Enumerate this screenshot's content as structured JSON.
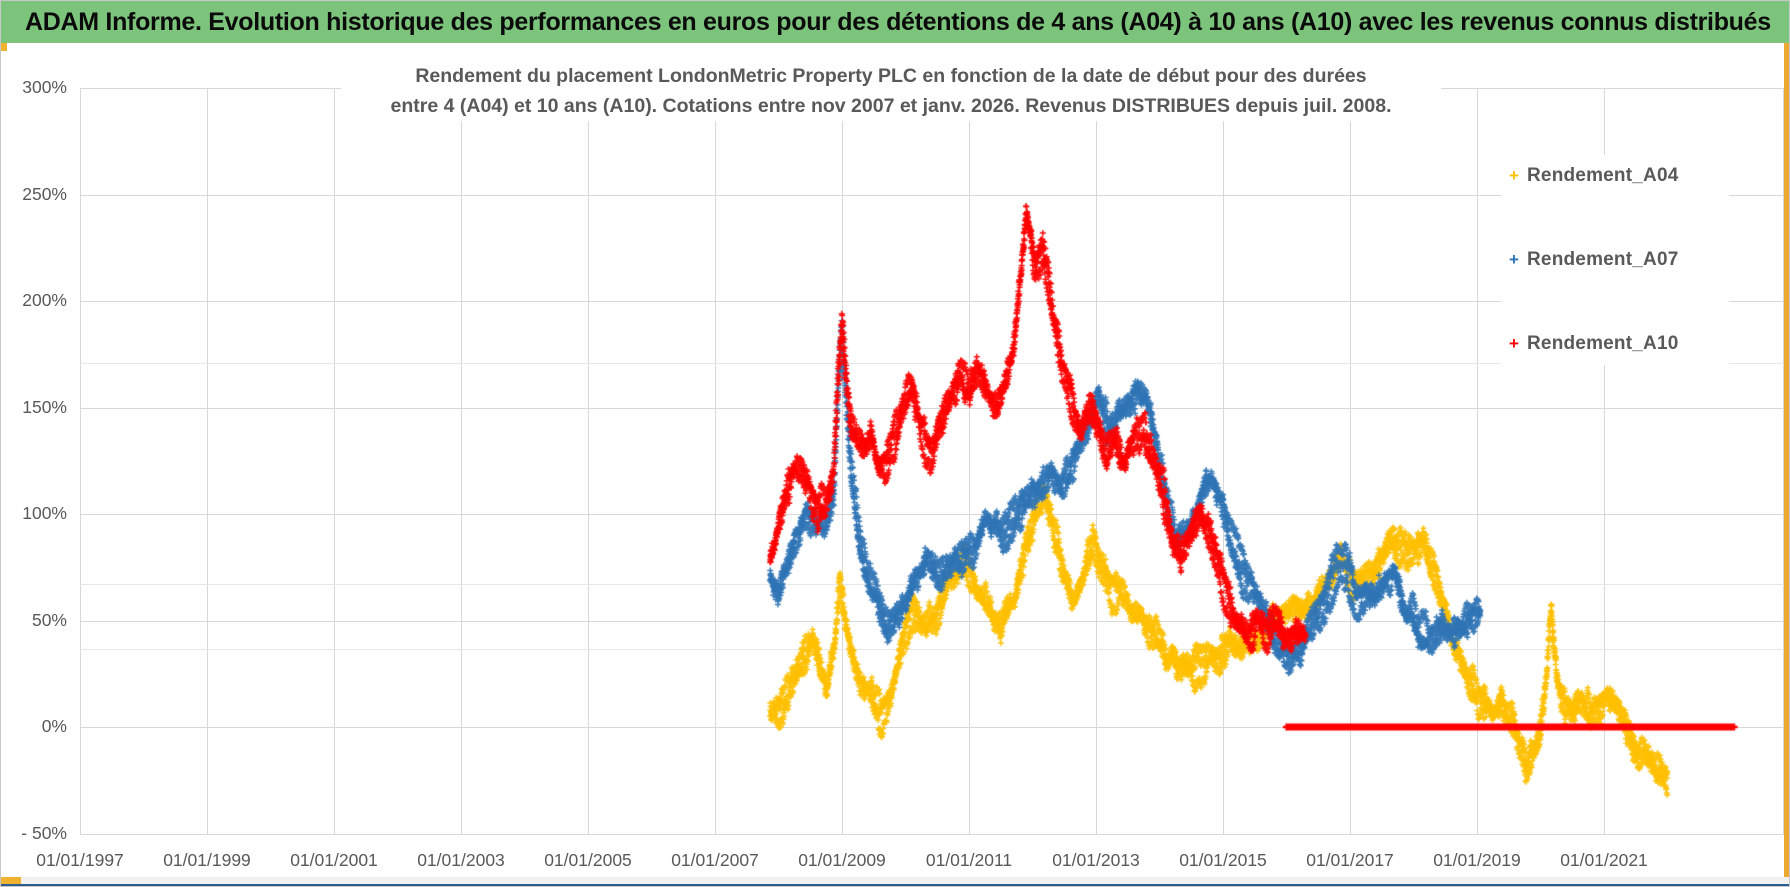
{
  "window": {
    "header_title": "ADAM Informe. Evolution historique des performances en euros pour des détentions de 4 ans (A04) à 10 ans (A10) avec les revenus connus distribués"
  },
  "chart": {
    "title_line1": "Rendement du placement LondonMetric Property PLC en fonction de la date de début pour des durées",
    "title_line2": "entre 4 (A04) et 10 ans (A10). Cotations entre nov 2007 et janv. 2026. Revenus DISTRIBUES depuis juil. 2008."
  },
  "chart_data": {
    "type": "scatter",
    "marker": "plus",
    "grid": true,
    "x_axis": {
      "ticks": [
        "01/01/1997",
        "01/01/1999",
        "01/01/2001",
        "01/01/2003",
        "01/01/2005",
        "01/01/2007",
        "01/01/2009",
        "01/01/2011",
        "01/01/2013",
        "01/01/2015",
        "01/01/2017",
        "01/01/2019",
        "01/01/2021"
      ],
      "tick_years": [
        1997,
        1999,
        2001,
        2003,
        2005,
        2007,
        2009,
        2011,
        2013,
        2015,
        2017,
        2019,
        2021
      ],
      "range_years": [
        1997,
        2023.83
      ]
    },
    "y_axis": {
      "ticks": [
        "300%",
        "250%",
        "200%",
        "150%",
        "100%",
        "50%",
        "0%",
        "- 50%"
      ],
      "tick_values": [
        300,
        250,
        200,
        150,
        100,
        50,
        0,
        -50
      ],
      "range_pct": [
        -50,
        300
      ]
    },
    "background_artifact_lines_pct": [
      170.9,
      67.1,
      36.6
    ],
    "legend": {
      "position": "upper-right-inside"
    },
    "series": [
      {
        "name": "Rendement_A04",
        "color": "#FFC000",
        "start": "nov 2007",
        "end": "janv 2022",
        "points": [
          [
            2007.87,
            8
          ],
          [
            2008.0,
            12
          ],
          [
            2008.2,
            20
          ],
          [
            2008.45,
            32
          ],
          [
            2008.6,
            34
          ],
          [
            2008.75,
            14
          ],
          [
            2008.9,
            45
          ],
          [
            2008.97,
            72
          ],
          [
            2009.05,
            50
          ],
          [
            2009.2,
            28
          ],
          [
            2009.35,
            20
          ],
          [
            2009.5,
            12
          ],
          [
            2009.63,
            3
          ],
          [
            2009.8,
            20
          ],
          [
            2009.95,
            40
          ],
          [
            2010.1,
            52
          ],
          [
            2010.3,
            45
          ],
          [
            2010.5,
            52
          ],
          [
            2010.7,
            65
          ],
          [
            2010.9,
            73
          ],
          [
            2011.1,
            65
          ],
          [
            2011.3,
            60
          ],
          [
            2011.5,
            50
          ],
          [
            2011.7,
            62
          ],
          [
            2011.9,
            88
          ],
          [
            2012.1,
            108
          ],
          [
            2012.2,
            115
          ],
          [
            2012.35,
            92
          ],
          [
            2012.5,
            70
          ],
          [
            2012.65,
            57
          ],
          [
            2012.8,
            72
          ],
          [
            2012.95,
            86
          ],
          [
            2013.1,
            73
          ],
          [
            2013.3,
            65
          ],
          [
            2013.5,
            58
          ],
          [
            2013.7,
            52
          ],
          [
            2013.9,
            42
          ],
          [
            2014.1,
            35
          ],
          [
            2014.3,
            28
          ],
          [
            2014.5,
            25
          ],
          [
            2014.7,
            30
          ],
          [
            2014.9,
            36
          ],
          [
            2015.1,
            40
          ],
          [
            2015.3,
            34
          ],
          [
            2015.5,
            40
          ],
          [
            2015.7,
            47
          ],
          [
            2015.9,
            54
          ],
          [
            2016.1,
            58
          ],
          [
            2016.3,
            55
          ],
          [
            2016.5,
            63
          ],
          [
            2016.7,
            72
          ],
          [
            2016.85,
            82
          ],
          [
            2017.0,
            70
          ],
          [
            2017.2,
            64
          ],
          [
            2017.4,
            72
          ],
          [
            2017.6,
            88
          ],
          [
            2017.75,
            85
          ],
          [
            2017.9,
            80
          ],
          [
            2018.05,
            85
          ],
          [
            2018.2,
            80
          ],
          [
            2018.35,
            72
          ],
          [
            2018.5,
            55
          ],
          [
            2018.65,
            35
          ],
          [
            2018.8,
            25
          ],
          [
            2018.95,
            20
          ],
          [
            2019.1,
            12
          ],
          [
            2019.25,
            6
          ],
          [
            2019.4,
            10
          ],
          [
            2019.55,
            5
          ],
          [
            2019.7,
            -8
          ],
          [
            2019.8,
            -18
          ],
          [
            2019.9,
            -12
          ],
          [
            2020.0,
            -2
          ],
          [
            2020.1,
            25
          ],
          [
            2020.17,
            55
          ],
          [
            2020.25,
            28
          ],
          [
            2020.35,
            12
          ],
          [
            2020.5,
            6
          ],
          [
            2020.65,
            10
          ],
          [
            2020.8,
            4
          ],
          [
            2020.95,
            8
          ],
          [
            2021.1,
            12
          ],
          [
            2021.25,
            7
          ],
          [
            2021.4,
            0
          ],
          [
            2021.55,
            -7
          ],
          [
            2021.7,
            -10
          ],
          [
            2021.85,
            -17
          ],
          [
            2022.0,
            -22
          ]
        ]
      },
      {
        "name": "Rendement_A07",
        "color": "#2E74B5",
        "start": "nov 2007",
        "end": "janv 2019",
        "points": [
          [
            2007.87,
            72
          ],
          [
            2008.0,
            64
          ],
          [
            2008.15,
            78
          ],
          [
            2008.3,
            92
          ],
          [
            2008.45,
            103
          ],
          [
            2008.6,
            100
          ],
          [
            2008.75,
            97
          ],
          [
            2008.87,
            110
          ],
          [
            2008.95,
            165
          ],
          [
            2009.0,
            185
          ],
          [
            2009.07,
            150
          ],
          [
            2009.15,
            118
          ],
          [
            2009.3,
            82
          ],
          [
            2009.45,
            70
          ],
          [
            2009.6,
            58
          ],
          [
            2009.75,
            50
          ],
          [
            2009.9,
            58
          ],
          [
            2010.05,
            66
          ],
          [
            2010.2,
            72
          ],
          [
            2010.35,
            80
          ],
          [
            2010.5,
            67
          ],
          [
            2010.65,
            72
          ],
          [
            2010.8,
            78
          ],
          [
            2010.95,
            83
          ],
          [
            2011.1,
            88
          ],
          [
            2011.25,
            98
          ],
          [
            2011.4,
            92
          ],
          [
            2011.55,
            88
          ],
          [
            2011.7,
            95
          ],
          [
            2011.85,
            103
          ],
          [
            2012.0,
            108
          ],
          [
            2012.15,
            112
          ],
          [
            2012.3,
            120
          ],
          [
            2012.45,
            113
          ],
          [
            2012.6,
            125
          ],
          [
            2012.75,
            133
          ],
          [
            2012.9,
            147
          ],
          [
            2013.05,
            158
          ],
          [
            2013.2,
            138
          ],
          [
            2013.35,
            148
          ],
          [
            2013.5,
            152
          ],
          [
            2013.65,
            160
          ],
          [
            2013.8,
            150
          ],
          [
            2013.95,
            130
          ],
          [
            2014.1,
            108
          ],
          [
            2014.25,
            92
          ],
          [
            2014.4,
            96
          ],
          [
            2014.55,
            102
          ],
          [
            2014.7,
            112
          ],
          [
            2014.85,
            116
          ],
          [
            2015.0,
            108
          ],
          [
            2015.15,
            88
          ],
          [
            2015.3,
            75
          ],
          [
            2015.45,
            68
          ],
          [
            2015.6,
            56
          ],
          [
            2015.75,
            46
          ],
          [
            2015.9,
            38
          ],
          [
            2016.05,
            34
          ],
          [
            2016.2,
            40
          ],
          [
            2016.35,
            48
          ],
          [
            2016.5,
            56
          ],
          [
            2016.65,
            64
          ],
          [
            2016.8,
            74
          ],
          [
            2016.95,
            76
          ],
          [
            2017.1,
            62
          ],
          [
            2017.25,
            68
          ],
          [
            2017.4,
            64
          ],
          [
            2017.55,
            72
          ],
          [
            2017.7,
            76
          ],
          [
            2017.85,
            58
          ],
          [
            2018.0,
            50
          ],
          [
            2018.15,
            42
          ],
          [
            2018.3,
            38
          ],
          [
            2018.45,
            45
          ],
          [
            2018.6,
            42
          ],
          [
            2018.75,
            46
          ],
          [
            2018.9,
            50
          ],
          [
            2019.05,
            52
          ]
        ]
      },
      {
        "name": "Rendement_A10",
        "color": "#FF0000",
        "start": "nov 2007",
        "end": "mars 2016",
        "points": [
          [
            2007.87,
            80
          ],
          [
            2008.0,
            98
          ],
          [
            2008.15,
            112
          ],
          [
            2008.3,
            122
          ],
          [
            2008.45,
            117
          ],
          [
            2008.6,
            103
          ],
          [
            2008.75,
            108
          ],
          [
            2008.87,
            120
          ],
          [
            2008.95,
            170
          ],
          [
            2009.0,
            192
          ],
          [
            2009.07,
            160
          ],
          [
            2009.15,
            140
          ],
          [
            2009.3,
            128
          ],
          [
            2009.45,
            135
          ],
          [
            2009.6,
            122
          ],
          [
            2009.75,
            128
          ],
          [
            2009.9,
            140
          ],
          [
            2010.0,
            155
          ],
          [
            2010.1,
            163
          ],
          [
            2010.25,
            138
          ],
          [
            2010.4,
            127
          ],
          [
            2010.55,
            142
          ],
          [
            2010.7,
            152
          ],
          [
            2010.85,
            165
          ],
          [
            2011.0,
            158
          ],
          [
            2011.15,
            172
          ],
          [
            2011.3,
            158
          ],
          [
            2011.45,
            150
          ],
          [
            2011.6,
            168
          ],
          [
            2011.72,
            185
          ],
          [
            2011.82,
            215
          ],
          [
            2011.9,
            240
          ],
          [
            2011.97,
            230
          ],
          [
            2012.05,
            212
          ],
          [
            2012.15,
            222
          ],
          [
            2012.25,
            205
          ],
          [
            2012.35,
            182
          ],
          [
            2012.5,
            162
          ],
          [
            2012.62,
            150
          ],
          [
            2012.75,
            138
          ],
          [
            2012.9,
            148
          ],
          [
            2013.0,
            142
          ],
          [
            2013.15,
            126
          ],
          [
            2013.3,
            133
          ],
          [
            2013.45,
            122
          ],
          [
            2013.6,
            138
          ],
          [
            2013.75,
            142
          ],
          [
            2013.9,
            128
          ],
          [
            2014.05,
            112
          ],
          [
            2014.2,
            92
          ],
          [
            2014.35,
            85
          ],
          [
            2014.5,
            95
          ],
          [
            2014.65,
            103
          ],
          [
            2014.8,
            92
          ],
          [
            2014.95,
            76
          ],
          [
            2015.1,
            60
          ],
          [
            2015.25,
            50
          ],
          [
            2015.4,
            44
          ],
          [
            2015.55,
            50
          ],
          [
            2015.7,
            43
          ],
          [
            2015.85,
            47
          ],
          [
            2016.0,
            44
          ],
          [
            2016.15,
            42
          ],
          [
            2016.3,
            40
          ]
        ]
      },
      {
        "name": "Rendement_A10_zero_segment",
        "color": "#FF0000",
        "flat": true,
        "note": "thick flat line at 0% for A10 start dates whose 10-year horizon exceeds the last quotation",
        "points": [
          [
            2016.0,
            0
          ],
          [
            2023.05,
            0
          ]
        ]
      }
    ]
  }
}
